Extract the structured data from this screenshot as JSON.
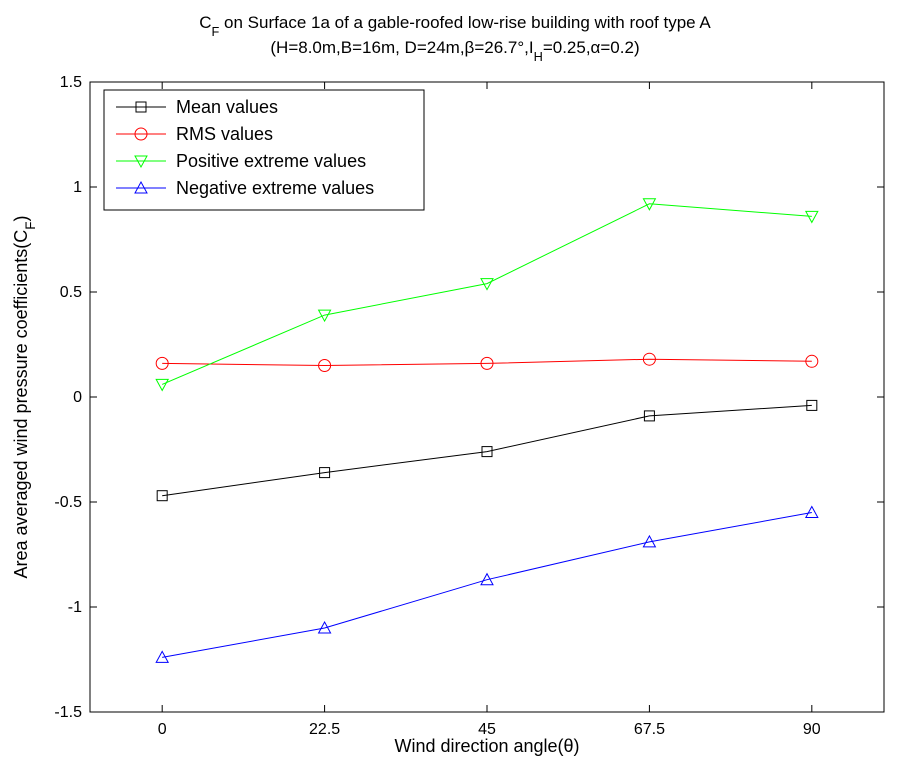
{
  "chart_data": {
    "type": "line",
    "title_line1": "C_F on Surface 1a of a gable-roofed low-rise building with roof type A",
    "title_line2": "(H=8.0m,B=16m, D=24m,β=26.7°,I_H=0.25,α=0.2)",
    "xlabel": "Wind direction angle(θ)",
    "ylabel": "Area averaged wind pressure coefficients(C_F)",
    "x": [
      0,
      22.5,
      45,
      67.5,
      90
    ],
    "x_tick_labels": [
      "0",
      "22.5",
      "45",
      "67.5",
      "90"
    ],
    "xlim": [
      -10,
      100
    ],
    "ylim": [
      -1.5,
      1.5
    ],
    "y_ticks": [
      -1.5,
      -1,
      -0.5,
      0,
      0.5,
      1,
      1.5
    ],
    "y_tick_labels": [
      "-1.5",
      "-1",
      "-0.5",
      "0",
      "0.5",
      "1",
      "1.5"
    ],
    "grid": false,
    "legend_position": "top-left",
    "series": [
      {
        "name": "Mean values",
        "marker": "square",
        "color": "#000000",
        "values": [
          -0.47,
          -0.36,
          -0.26,
          -0.09,
          -0.04
        ]
      },
      {
        "name": "RMS values",
        "marker": "circle",
        "color": "#ff0000",
        "values": [
          0.16,
          0.15,
          0.16,
          0.18,
          0.17
        ]
      },
      {
        "name": "Positive extreme values",
        "marker": "triangle-down",
        "color": "#00ff00",
        "values": [
          0.06,
          0.39,
          0.54,
          0.92,
          0.86
        ]
      },
      {
        "name": "Negative extreme values",
        "marker": "triangle-up",
        "color": "#0000ff",
        "values": [
          -1.24,
          -1.1,
          -0.87,
          -0.69,
          -0.55
        ]
      }
    ]
  }
}
